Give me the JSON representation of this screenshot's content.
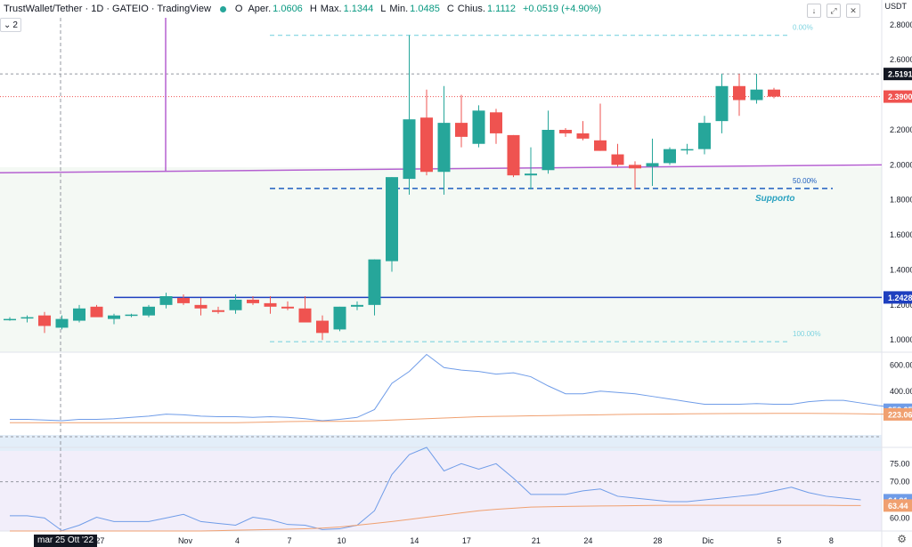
{
  "header": {
    "title": "TrustWallet/Tether · 1D · GATEIO · TradingView",
    "open_label": "O",
    "open_key": "Aper.",
    "open_val": "1.0606",
    "high_key": "H",
    "high_key2": "Max.",
    "high_val": "1.1344",
    "low_key": "L",
    "low_key2": "Min.",
    "low_val": "1.0485",
    "close_key": "C",
    "close_key2": "Chius.",
    "close_val": "1.1112",
    "change_val": "+0.0519 (+4.90%)",
    "collapse_label": "2",
    "currency": "USDT",
    "date_tag": "mar 25 Ott '22"
  },
  "colors": {
    "up": "#26a69a",
    "down": "#ef5350",
    "fib": "#7fd4e0",
    "purple": "#b561d1",
    "support_blue": "#1e3fbf",
    "dash_blue": "#1e5fbf",
    "indicator_line": "#6f9ce8",
    "indicator_ma": "#f0a070"
  },
  "chart_data": [
    {
      "type": "candlestick",
      "title": "TrustWallet/Tether · 1D · GATEIO",
      "x_ticks": [
        "27",
        "Nov",
        "4",
        "7",
        "10",
        "14",
        "17",
        "21",
        "24",
        "28",
        "Dic",
        "5",
        "8"
      ],
      "y_ticks": [
        "2.8000",
        "2.6000",
        "2.4000",
        "2.2000",
        "2.0000",
        "1.8000",
        "1.6000",
        "1.4000",
        "1.2000",
        "1.0000"
      ],
      "ylim": [
        0.93,
        2.84
      ],
      "price_labels": [
        "2.5191",
        "2.3900",
        "1.2428"
      ],
      "fib_labels": [
        "0.00%",
        "50.00%",
        "100.00%"
      ],
      "annotation": "Supporto",
      "candles": [
        {
          "o": 1.12,
          "h": 1.13,
          "l": 1.11,
          "c": 1.12
        },
        {
          "o": 1.13,
          "h": 1.14,
          "l": 1.1,
          "c": 1.13
        },
        {
          "o": 1.14,
          "h": 1.16,
          "l": 1.04,
          "c": 1.08
        },
        {
          "o": 1.07,
          "h": 1.14,
          "l": 1.06,
          "c": 1.12
        },
        {
          "o": 1.11,
          "h": 1.2,
          "l": 1.1,
          "c": 1.18
        },
        {
          "o": 1.19,
          "h": 1.2,
          "l": 1.14,
          "c": 1.13
        },
        {
          "o": 1.12,
          "h": 1.15,
          "l": 1.09,
          "c": 1.14
        },
        {
          "o": 1.14,
          "h": 1.15,
          "l": 1.13,
          "c": 1.145
        },
        {
          "o": 1.14,
          "h": 1.2,
          "l": 1.13,
          "c": 1.19
        },
        {
          "o": 1.2,
          "h": 1.27,
          "l": 1.18,
          "c": 1.25
        },
        {
          "o": 1.24,
          "h": 1.26,
          "l": 1.2,
          "c": 1.21
        },
        {
          "o": 1.2,
          "h": 1.24,
          "l": 1.14,
          "c": 1.18
        },
        {
          "o": 1.17,
          "h": 1.19,
          "l": 1.15,
          "c": 1.16
        },
        {
          "o": 1.17,
          "h": 1.26,
          "l": 1.15,
          "c": 1.23
        },
        {
          "o": 1.23,
          "h": 1.25,
          "l": 1.2,
          "c": 1.21
        },
        {
          "o": 1.21,
          "h": 1.25,
          "l": 1.15,
          "c": 1.19
        },
        {
          "o": 1.19,
          "h": 1.22,
          "l": 1.17,
          "c": 1.18
        },
        {
          "o": 1.18,
          "h": 1.25,
          "l": 1.1,
          "c": 1.1
        },
        {
          "o": 1.11,
          "h": 1.14,
          "l": 1.0,
          "c": 1.04
        },
        {
          "o": 1.06,
          "h": 1.19,
          "l": 1.05,
          "c": 1.19
        },
        {
          "o": 1.19,
          "h": 1.22,
          "l": 1.17,
          "c": 1.2
        },
        {
          "o": 1.2,
          "h": 1.46,
          "l": 1.14,
          "c": 1.46
        },
        {
          "o": 1.45,
          "h": 1.93,
          "l": 1.39,
          "c": 1.93
        },
        {
          "o": 1.92,
          "h": 2.74,
          "l": 1.83,
          "c": 2.26
        },
        {
          "o": 2.27,
          "h": 2.43,
          "l": 1.94,
          "c": 1.96
        },
        {
          "o": 1.96,
          "h": 2.45,
          "l": 1.83,
          "c": 2.24
        },
        {
          "o": 2.24,
          "h": 2.4,
          "l": 2.1,
          "c": 2.16
        },
        {
          "o": 2.12,
          "h": 2.34,
          "l": 2.1,
          "c": 2.31
        },
        {
          "o": 2.3,
          "h": 2.32,
          "l": 2.12,
          "c": 2.18
        },
        {
          "o": 2.17,
          "h": 2.17,
          "l": 1.93,
          "c": 1.94
        },
        {
          "o": 1.94,
          "h": 2.1,
          "l": 1.86,
          "c": 1.95
        },
        {
          "o": 1.97,
          "h": 2.31,
          "l": 1.95,
          "c": 2.2
        },
        {
          "o": 2.2,
          "h": 2.21,
          "l": 2.16,
          "c": 2.18
        },
        {
          "o": 2.18,
          "h": 2.25,
          "l": 2.14,
          "c": 2.15
        },
        {
          "o": 2.14,
          "h": 2.35,
          "l": 2.08,
          "c": 2.08
        },
        {
          "o": 2.06,
          "h": 2.12,
          "l": 1.99,
          "c": 2.0
        },
        {
          "o": 2.0,
          "h": 2.02,
          "l": 1.86,
          "c": 1.98
        },
        {
          "o": 1.99,
          "h": 2.15,
          "l": 1.88,
          "c": 2.01
        },
        {
          "o": 2.01,
          "h": 2.1,
          "l": 2.0,
          "c": 2.09
        },
        {
          "o": 2.09,
          "h": 2.12,
          "l": 2.06,
          "c": 2.09
        },
        {
          "o": 2.09,
          "h": 2.28,
          "l": 2.06,
          "c": 2.24
        },
        {
          "o": 2.25,
          "h": 2.52,
          "l": 2.18,
          "c": 2.45
        },
        {
          "o": 2.45,
          "h": 2.52,
          "l": 2.28,
          "c": 2.37
        },
        {
          "o": 2.37,
          "h": 2.52,
          "l": 2.35,
          "c": 2.43
        },
        {
          "o": 2.43,
          "h": 2.44,
          "l": 2.38,
          "c": 2.39
        }
      ]
    },
    {
      "type": "line",
      "y_ticks": [
        "600.00",
        "400.00"
      ],
      "ylim": [
        80,
        690
      ],
      "value_labels": [
        "258.25",
        "223.06"
      ],
      "series": [
        {
          "values": [
            185,
            185,
            180,
            175,
            185,
            185,
            190,
            200,
            210,
            225,
            220,
            210,
            205,
            205,
            200,
            205,
            200,
            190,
            175,
            185,
            200,
            260,
            460,
            550,
            680,
            580,
            560,
            550,
            530,
            540,
            510,
            440,
            380,
            380,
            400,
            390,
            380,
            360,
            340,
            320,
            300,
            300,
            300,
            305,
            300,
            300,
            320,
            330,
            330,
            310,
            290,
            275,
            260
          ]
        },
        {
          "values": [
            160,
            160,
            160,
            160,
            160,
            160,
            160,
            160,
            160,
            160,
            160,
            160,
            160,
            160,
            162,
            165,
            168,
            170,
            170,
            170,
            172,
            175,
            180,
            185,
            190,
            195,
            200,
            205,
            208,
            210,
            212,
            214,
            216,
            218,
            220,
            222,
            224,
            225,
            226,
            227,
            228,
            229,
            230,
            230,
            231,
            231,
            231,
            230,
            229,
            227,
            225,
            224,
            223
          ]
        }
      ]
    },
    {
      "type": "line",
      "y_ticks": [
        "75.00",
        "70.00",
        "65.00",
        "60.00"
      ],
      "ylim": [
        56.4,
        79.5
      ],
      "value_labels": [
        "64.91",
        "63.44"
      ],
      "series": [
        {
          "values": [
            60.6,
            60.6,
            60.0,
            56.5,
            58.0,
            60.2,
            59.0,
            59.0,
            59.0,
            60.0,
            61.0,
            59.0,
            58.5,
            58.0,
            60.2,
            59.5,
            58.2,
            58.0,
            56.8,
            57.0,
            58.0,
            62.0,
            72.0,
            77.5,
            79.5,
            73.0,
            75.0,
            73.5,
            75.0,
            71.0,
            66.5,
            66.5,
            66.5,
            67.5,
            68.0,
            66.0,
            65.5,
            65.0,
            64.5,
            64.5,
            65.0,
            65.5,
            66.0,
            66.5,
            67.5,
            68.5,
            67.0,
            66.0,
            65.5,
            65.0
          ]
        },
        {
          "values": [
            56.4,
            56.4,
            56.4,
            56.4,
            56.4,
            56.4,
            56.4,
            56.4,
            56.4,
            56.4,
            56.4,
            56.4,
            56.5,
            56.6,
            56.7,
            56.8,
            56.9,
            57.0,
            57.2,
            57.5,
            58.0,
            58.5,
            59.0,
            59.6,
            60.2,
            60.8,
            61.4,
            62.0,
            62.4,
            62.7,
            63.0,
            63.1,
            63.2,
            63.25,
            63.3,
            63.35,
            63.4,
            63.45,
            63.5,
            63.5,
            63.5,
            63.5,
            63.5,
            63.5,
            63.5,
            63.5,
            63.5,
            63.5,
            63.44,
            63.44
          ]
        }
      ]
    }
  ]
}
